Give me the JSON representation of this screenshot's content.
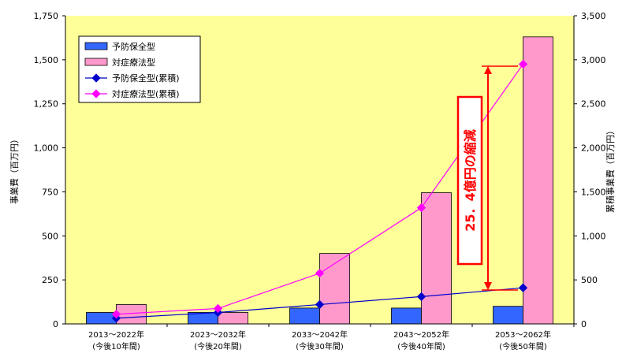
{
  "chart_data": {
    "type": "bar",
    "categories": [
      [
        "2013～2022年",
        "(今後10年間)"
      ],
      [
        "2023～2032年",
        "(今後20年間)"
      ],
      [
        "2033～2042年",
        "(今後30年間)"
      ],
      [
        "2043～2052年",
        "(今後40年間)"
      ],
      [
        "2053～2062年",
        "(今後50年間)"
      ]
    ],
    "ylabel": "事業費（百万円）",
    "y2label": "累積事業費（百万円）",
    "ylim": [
      0,
      1750
    ],
    "y2lim": [
      0,
      3500
    ],
    "yticks": [
      "0",
      "250",
      "500",
      "750",
      "1,000",
      "1,250",
      "1,500",
      "1,750"
    ],
    "y2ticks": [
      "0",
      "500",
      "1,000",
      "1,500",
      "2,000",
      "2,500",
      "3,000",
      "3,500"
    ],
    "series": [
      {
        "name": "予防保全型",
        "type": "bar",
        "axis": "left",
        "values": [
          65,
          65,
          90,
          90,
          100
        ]
      },
      {
        "name": "対症療法型",
        "type": "bar",
        "axis": "left",
        "values": [
          110,
          65,
          400,
          745,
          1630
        ]
      },
      {
        "name": "予防保全型(累積)",
        "type": "line",
        "axis": "right",
        "values": [
          65,
          130,
          220,
          310,
          410
        ]
      },
      {
        "name": "対症療法型(累積)",
        "type": "line",
        "axis": "right",
        "values": [
          110,
          175,
          575,
          1320,
          2950
        ]
      }
    ],
    "annotation": "25．4億円の縮減",
    "legend_position": "top-left",
    "grid": false,
    "colors": {
      "plot_background": "#ffff99",
      "bar1": "#3366ff",
      "bar2": "#ff99cc",
      "line1": "#0000cc",
      "line2": "#ff00ff",
      "annotation": "#ff0000"
    }
  }
}
